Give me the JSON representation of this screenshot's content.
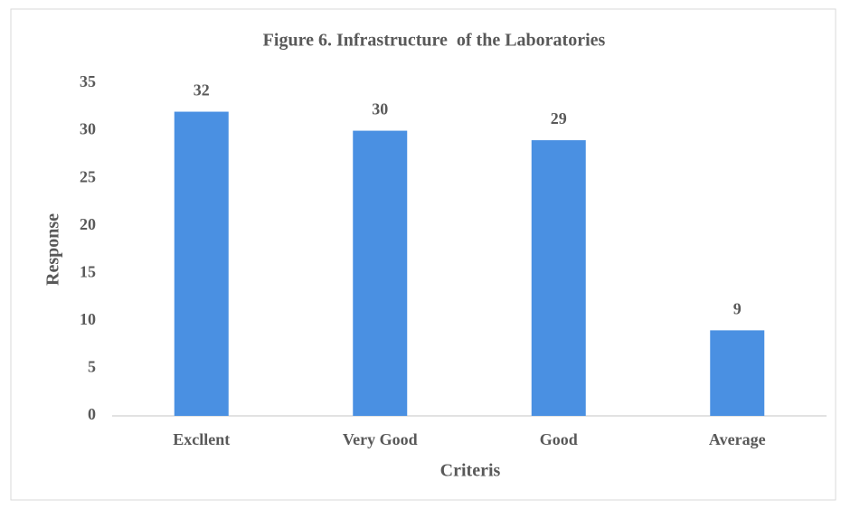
{
  "chart_data": {
    "type": "bar",
    "title": "Figure 6. Infrastructure  of the Laboratories",
    "x_label": "Criteris",
    "y_label": "Response",
    "categories": [
      "Excllent",
      "Very Good",
      "Good",
      "Average"
    ],
    "values": [
      32,
      30,
      29,
      9
    ],
    "color": "#4a90e2",
    "ylim": [
      0,
      35
    ],
    "yticks": [
      0,
      5,
      10,
      15,
      20,
      25,
      30,
      35
    ],
    "grid": false
  }
}
